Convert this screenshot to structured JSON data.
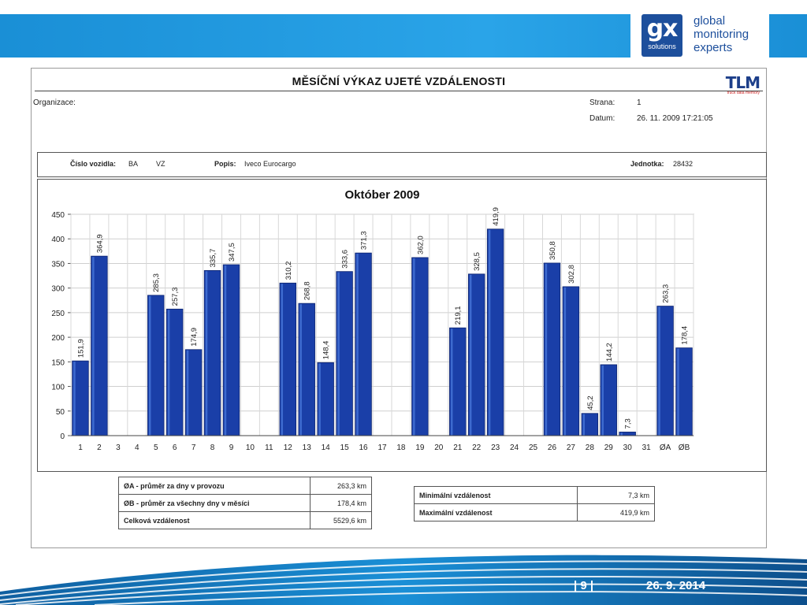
{
  "brand": {
    "mark": "gx",
    "mark_sub": "solutions",
    "line1": "global",
    "line2": "monitoring",
    "line3": "experts"
  },
  "report": {
    "title": "MĚSÍČNÍ VÝKAZ UJETÉ VZDÁLENOSTI",
    "tlm_logo": "TLM",
    "tlm_sub": "truck data memory",
    "org_label": "Organizace:",
    "page_label": "Strana:",
    "page_value": "1",
    "date_label": "Datum:",
    "date_value": "26. 11. 2009 17:21:05",
    "vehicle_label": "Číslo vozidla:",
    "vehicle_v1": "BA",
    "vehicle_v2": "VZ",
    "desc_label": "Popis:",
    "desc_value": "Iveco Eurocargo",
    "unit_label": "Jednotka:",
    "unit_value": "28432"
  },
  "chart_data": {
    "type": "bar",
    "title": "Október 2009",
    "categories": [
      "1",
      "2",
      "3",
      "4",
      "5",
      "6",
      "7",
      "8",
      "9",
      "10",
      "11",
      "12",
      "13",
      "14",
      "15",
      "16",
      "17",
      "18",
      "19",
      "20",
      "21",
      "22",
      "23",
      "24",
      "25",
      "26",
      "27",
      "28",
      "29",
      "30",
      "31",
      "ØA",
      "ØB"
    ],
    "values": [
      151.9,
      364.9,
      null,
      null,
      285.3,
      257.3,
      174.9,
      335.7,
      347.5,
      null,
      null,
      310.2,
      268.8,
      148.4,
      333.6,
      371.3,
      null,
      null,
      362.0,
      null,
      219.1,
      328.5,
      419.9,
      null,
      null,
      350.8,
      302.8,
      45.2,
      144.2,
      7.3,
      null,
      263.3,
      178.4
    ],
    "value_labels": [
      "151,9",
      "364,9",
      "",
      "",
      "285,3",
      "257,3",
      "174,9",
      "335,7",
      "347,5",
      "",
      "",
      "310,2",
      "268,8",
      "148,4",
      "333,6",
      "371,3",
      "",
      "",
      "362,0",
      "",
      "219,1",
      "328,5",
      "419,9",
      "",
      "",
      "350,8",
      "302,8",
      "45,2",
      "144,2",
      "7,3",
      "",
      "263,3",
      "178,4"
    ],
    "ylim": [
      0,
      450
    ],
    "yticks": [
      "0",
      "50",
      "100",
      "150",
      "200",
      "250",
      "300",
      "350",
      "400",
      "450"
    ],
    "grid": true,
    "bar_color": "#1a3fa8",
    "xlabel": "",
    "ylabel": ""
  },
  "stats_left": [
    {
      "key": "ØA - průměr za dny v provozu",
      "value": "263,3 km"
    },
    {
      "key": "ØB - průměr za všechny dny v měsíci",
      "value": "178,4 km"
    },
    {
      "key": "Celková vzdálenost",
      "value": "5529,6 km"
    }
  ],
  "stats_right": [
    {
      "key": "Minimální vzdálenost",
      "value": "7,3 km"
    },
    {
      "key": "Maximální vzdálenost",
      "value": "419,9 km"
    }
  ],
  "footer": {
    "page": "| 9 |",
    "date": "26. 9. 2014"
  }
}
